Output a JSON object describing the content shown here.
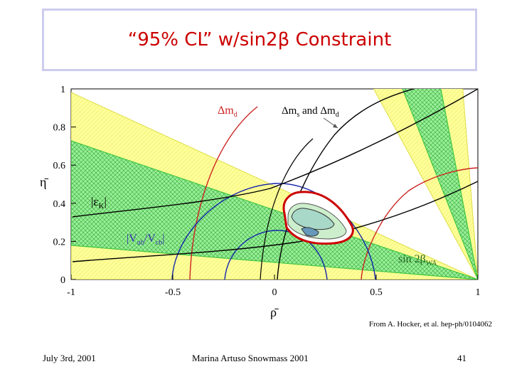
{
  "slide": {
    "title": "“95% CL” w/sin2β Constraint",
    "source_note": "From A. Hocker, et al. hep-ph/0104062",
    "footer_date": "July 3rd, 2001",
    "footer_center": "Marina Artuso Snowmass 2001",
    "page_number": "41"
  },
  "chart_data": {
    "type": "scatter",
    "xlabel": "ρ̄",
    "ylabel": "η̄",
    "xlim": [
      -1,
      1
    ],
    "ylim": [
      0,
      1
    ],
    "x_ticks": [
      "-1",
      "-0.5",
      "0",
      "0.5",
      "1"
    ],
    "y_ticks": [
      "0",
      "0.2",
      "0.4",
      "0.6",
      "0.8",
      "1"
    ],
    "annotations": {
      "dmd": "Δm",
      "dmd_sub": "d",
      "dms_1": "Δm",
      "dms_sub1": "s",
      "dms_mid": " and Δm",
      "dms_sub2": "d",
      "epsk": "|ε",
      "epsk_sub": "K",
      "epsk_end": "|",
      "vub": "|V",
      "vub_sub1": "ub",
      "vub_mid": "/V",
      "vub_sub2": "cb",
      "vub_end": "|",
      "sin2b": "sin 2β",
      "sin2b_sub": "WA"
    },
    "colors": {
      "yellow_band": "#ffff88",
      "green_band": "#66dd66",
      "red_contour": "#cc0000",
      "blue_circle": "#0000aa",
      "black_curve": "#000000",
      "dark_red_label": "#cc2222",
      "vub_label": "#3333aa",
      "sin2b_label": "#226622"
    }
  }
}
